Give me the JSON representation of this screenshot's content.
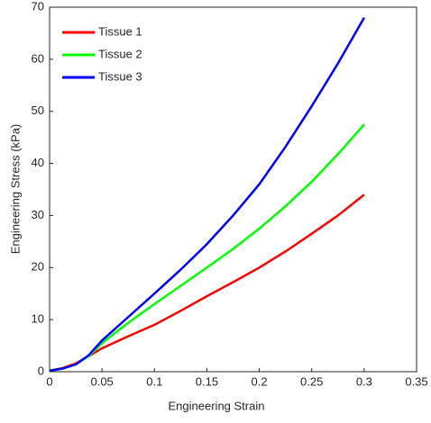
{
  "chart_data": {
    "type": "line",
    "xlabel": "Engineering Strain",
    "ylabel": "Engineering Stress (kPa)",
    "x": [
      0,
      0.0125,
      0.025,
      0.0375,
      0.05,
      0.075,
      0.1,
      0.125,
      0.15,
      0.175,
      0.2,
      0.225,
      0.25,
      0.275,
      0.3
    ],
    "series": [
      {
        "name": "Tissue 1",
        "color": "#ff0000",
        "values": [
          0.2,
          0.7,
          1.6,
          3.0,
          4.5,
          6.8,
          9.0,
          11.7,
          14.5,
          17.2,
          20.0,
          23.1,
          26.5,
          30.0,
          34.0
        ]
      },
      {
        "name": "Tissue 2",
        "color": "#00ff00",
        "values": [
          0.2,
          0.6,
          1.4,
          3.0,
          5.5,
          9.4,
          13.0,
          16.5,
          20.0,
          23.6,
          27.5,
          31.8,
          36.5,
          41.8,
          47.5
        ]
      },
      {
        "name": "Tissue 3",
        "color": "#0000ff",
        "values": [
          0.2,
          0.6,
          1.4,
          3.2,
          6.0,
          10.5,
          15.0,
          19.6,
          24.5,
          30.0,
          36.0,
          43.2,
          51.0,
          59.2,
          68.0
        ]
      }
    ],
    "xlim": [
      0,
      0.35
    ],
    "xticks": [
      0,
      0.05,
      0.1,
      0.15,
      0.2,
      0.25,
      0.3,
      0.35
    ],
    "ylim": [
      0,
      70
    ],
    "yticks": [
      0,
      10,
      20,
      30,
      40,
      50,
      60,
      70
    ],
    "grid": false,
    "legend": "upper-left"
  }
}
